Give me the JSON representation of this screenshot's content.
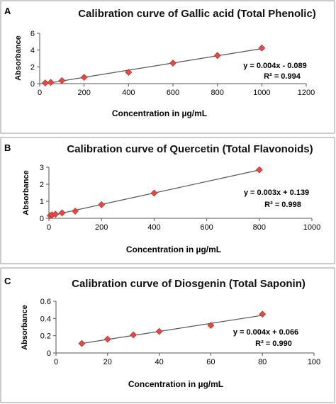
{
  "chart_data": [
    {
      "type": "scatter",
      "panel_label": "A",
      "title": "Calibration curve of Gallic acid (Total Phenolic)",
      "xlabel": "Concentration in µg/mL",
      "ylabel": "Absorbance",
      "xlim": [
        0,
        1200
      ],
      "ylim": [
        0,
        6
      ],
      "x_ticks": [
        0,
        200,
        400,
        600,
        800,
        1000,
        1200
      ],
      "y_ticks": [
        0,
        2,
        4,
        6
      ],
      "trendline": true,
      "equation": "y = 0.004x - 0.089",
      "r2": "R² = 0.994",
      "points": [
        {
          "x": 25,
          "y": 0.08
        },
        {
          "x": 50,
          "y": 0.15
        },
        {
          "x": 100,
          "y": 0.36
        },
        {
          "x": 200,
          "y": 0.75
        },
        {
          "x": 400,
          "y": 1.35
        },
        {
          "x": 600,
          "y": 2.45
        },
        {
          "x": 800,
          "y": 3.35
        },
        {
          "x": 1000,
          "y": 4.25
        }
      ]
    },
    {
      "type": "scatter",
      "panel_label": "B",
      "title": "Calibration curve of Quercetin (Total Flavonoids)",
      "xlabel": "Concentration in µg/mL",
      "ylabel": "Absorbance",
      "xlim": [
        0,
        1000
      ],
      "ylim": [
        0,
        3
      ],
      "x_ticks": [
        0,
        200,
        400,
        600,
        800,
        1000
      ],
      "y_ticks": [
        0,
        1,
        2,
        3
      ],
      "trendline": true,
      "equation": "y = 0.003x + 0.139",
      "r2": "R² = 0.998",
      "points": [
        {
          "x": 5,
          "y": 0.16
        },
        {
          "x": 12,
          "y": 0.2
        },
        {
          "x": 25,
          "y": 0.24
        },
        {
          "x": 50,
          "y": 0.32
        },
        {
          "x": 100,
          "y": 0.42
        },
        {
          "x": 200,
          "y": 0.8
        },
        {
          "x": 400,
          "y": 1.48
        },
        {
          "x": 800,
          "y": 2.85
        }
      ]
    },
    {
      "type": "scatter",
      "panel_label": "C",
      "title": "Calibration curve of Diosgenin (Total Saponin)",
      "xlabel": "Concentration in µg/mL",
      "ylabel": "Absorbance",
      "xlim": [
        0,
        100
      ],
      "ylim": [
        0,
        0.6
      ],
      "x_ticks": [
        0,
        20,
        40,
        60,
        80,
        100
      ],
      "y_ticks": [
        0,
        0.2,
        0.4,
        0.6
      ],
      "trendline": true,
      "equation": "y = 0.004x + 0.066",
      "r2": "R² = 0.990",
      "points": [
        {
          "x": 10,
          "y": 0.11
        },
        {
          "x": 20,
          "y": 0.16
        },
        {
          "x": 30,
          "y": 0.21
        },
        {
          "x": 40,
          "y": 0.25
        },
        {
          "x": 60,
          "y": 0.32
        },
        {
          "x": 80,
          "y": 0.45
        }
      ]
    }
  ],
  "colors": {
    "marker": "#e04a44",
    "trendline": "#555555",
    "frame": "#9a9a9a"
  }
}
